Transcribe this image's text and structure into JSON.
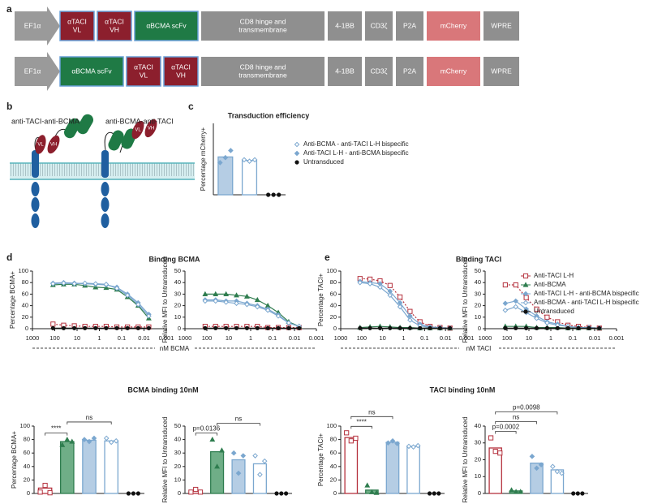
{
  "panel_labels": [
    "a",
    "b",
    "c",
    "d",
    "e"
  ],
  "constructs": [
    {
      "segments": [
        {
          "lines": [
            "EF1α"
          ],
          "kind": "promoter"
        },
        {
          "lines": [
            "αTACI",
            "VL"
          ],
          "kind": "taci"
        },
        {
          "lines": [
            "αTACI",
            "VH"
          ],
          "kind": "taci"
        },
        {
          "lines": [
            "αBCMA scFv"
          ],
          "kind": "bcma"
        },
        {
          "lines": [
            "CD8 hinge and",
            "transmembrane"
          ],
          "kind": "gray"
        },
        {
          "lines": [
            "4-1BB"
          ],
          "kind": "gray"
        },
        {
          "lines": [
            "CD3ζ"
          ],
          "kind": "gray"
        },
        {
          "lines": [
            "P2A"
          ],
          "kind": "gray"
        },
        {
          "lines": [
            "mCherry"
          ],
          "kind": "mcherry"
        },
        {
          "lines": [
            "WPRE"
          ],
          "kind": "gray"
        }
      ]
    },
    {
      "segments": [
        {
          "lines": [
            "EF1α"
          ],
          "kind": "promoter"
        },
        {
          "lines": [
            "αBCMA scFv"
          ],
          "kind": "bcma"
        },
        {
          "lines": [
            "αTACI",
            "VL"
          ],
          "kind": "taci"
        },
        {
          "lines": [
            "αTACI",
            "VH"
          ],
          "kind": "taci"
        },
        {
          "lines": [
            "CD8 hinge and",
            "transmembrane"
          ],
          "kind": "gray"
        },
        {
          "lines": [
            "4-1BB"
          ],
          "kind": "gray"
        },
        {
          "lines": [
            "CD3ζ"
          ],
          "kind": "gray"
        },
        {
          "lines": [
            "P2A"
          ],
          "kind": "gray"
        },
        {
          "lines": [
            "mCherry"
          ],
          "kind": "mcherry"
        },
        {
          "lines": [
            "WPRE"
          ],
          "kind": "gray"
        }
      ]
    }
  ],
  "schematic": {
    "labels": [
      "anti-TACI-anti-BCMA",
      "anti-BCMA-anti-TACI"
    ],
    "domains": [
      "VL",
      "VH"
    ]
  },
  "chart_data": [
    {
      "type": "bar",
      "title": "Transduction efficiency",
      "ylabel": "Percentage mCherry+",
      "ylim": [
        0,
        100
      ],
      "values": [
        53,
        48,
        0
      ],
      "points": [
        [
          45,
          52,
          62
        ],
        [
          49,
          47,
          49
        ],
        [
          0,
          0,
          0
        ]
      ],
      "colors": [
        "#7ba7cf",
        "#7ba7cf",
        "#111111"
      ],
      "fills": [
        "#b5cde4",
        "#ffffff",
        "none"
      ],
      "markers": [
        "diamond",
        "diamond-open",
        "circle"
      ],
      "legend": [
        {
          "name": "Anti-BCMA - anti-TACI L-H bispecific",
          "marker": "diamond-open",
          "color": "#7ba7cf"
        },
        {
          "name": "Anti-TACI L-H - anti-BCMA bispecific",
          "marker": "diamond",
          "color": "#7ba7cf"
        },
        {
          "name": "Untransduced",
          "marker": "circle",
          "color": "#111111"
        }
      ]
    },
    {
      "type": "line",
      "title": "Binding BCMA",
      "ylabel": "Percentage BCMA+",
      "xlabel": "nM BCMA",
      "xscale": "log",
      "xlim": [
        1000,
        0.001
      ],
      "xticks": [
        1000,
        100,
        10,
        1,
        0.1,
        0.01,
        0.001
      ],
      "ylim": [
        0,
        100
      ],
      "yticks": [
        0,
        20,
        40,
        60,
        80,
        100
      ],
      "x": [
        120,
        40,
        13.3,
        4.44,
        1.48,
        0.494,
        0.165,
        0.0549,
        0.0183,
        0.0061
      ],
      "series": [
        {
          "color": "#b5323e",
          "marker": "square-open",
          "line_style": "dotted",
          "values": [
            8,
            6,
            5,
            4,
            4,
            4,
            3,
            3,
            3,
            3
          ]
        },
        {
          "color": "#2f7d4f",
          "marker": "triangle",
          "values": [
            76,
            77,
            77,
            75,
            72,
            71,
            68,
            55,
            40,
            18
          ]
        },
        {
          "color": "#7ba7cf",
          "marker": "diamond",
          "values": [
            79,
            80,
            79,
            78,
            77,
            76,
            72,
            60,
            45,
            25
          ]
        },
        {
          "color": "#7ba7cf",
          "marker": "diamond-open",
          "values": [
            78,
            79,
            78,
            79,
            78,
            77,
            70,
            58,
            42,
            22
          ]
        },
        {
          "color": "#111111",
          "marker": "circle",
          "values": [
            1,
            1,
            1,
            1,
            1,
            1,
            1,
            1,
            1,
            1
          ]
        }
      ]
    },
    {
      "type": "line",
      "ylabel": "Relative MFI to Untransduced",
      "xscale": "log",
      "xlim": [
        1000,
        0.001
      ],
      "xticks": [
        1000,
        100,
        10,
        1,
        0.1,
        0.01,
        0.001
      ],
      "ylim": [
        0,
        50
      ],
      "yticks": [
        0,
        10,
        20,
        30,
        40,
        50
      ],
      "x": [
        120,
        40,
        13.3,
        4.44,
        1.48,
        0.494,
        0.165,
        0.0549,
        0.0183,
        0.0061
      ],
      "series": [
        {
          "color": "#b5323e",
          "marker": "square-open",
          "line_style": "dotted",
          "values": [
            2,
            2,
            2,
            2,
            2,
            2,
            1,
            1,
            1,
            1
          ]
        },
        {
          "color": "#2f7d4f",
          "marker": "triangle",
          "values": [
            30,
            30,
            30,
            29,
            28,
            25,
            20,
            14,
            6,
            2
          ]
        },
        {
          "color": "#7ba7cf",
          "marker": "diamond",
          "values": [
            25,
            25,
            24,
            24,
            22,
            20,
            17,
            12,
            5,
            2
          ]
        },
        {
          "color": "#7ba7cf",
          "marker": "diamond-open",
          "values": [
            24,
            24,
            23,
            22,
            21,
            19,
            16,
            11,
            5,
            2
          ]
        },
        {
          "color": "#111111",
          "marker": "circle",
          "values": [
            0.5,
            0.5,
            0.5,
            0.5,
            0.5,
            0.5,
            0.5,
            0.5,
            0.5,
            0.5
          ]
        }
      ]
    },
    {
      "type": "line",
      "title": "Binding TACI",
      "ylabel": "Percentage TACI+",
      "xlabel": "nM TACI",
      "xscale": "log",
      "xlim": [
        1000,
        0.001
      ],
      "xticks": [
        1000,
        100,
        10,
        1,
        0.1,
        0.01,
        0.001
      ],
      "ylim": [
        0,
        100
      ],
      "yticks": [
        0,
        20,
        40,
        60,
        80,
        100
      ],
      "x": [
        120,
        40,
        13.3,
        4.44,
        1.48,
        0.494,
        0.165,
        0.0549,
        0.0183,
        0.0061
      ],
      "series": [
        {
          "color": "#b5323e",
          "marker": "square-open",
          "line_style": "dotted",
          "values": [
            87,
            86,
            83,
            75,
            55,
            30,
            12,
            4,
            2,
            1
          ]
        },
        {
          "color": "#2f7d4f",
          "marker": "triangle",
          "values": [
            2,
            3,
            4,
            3,
            2,
            2,
            1,
            1,
            1,
            1
          ]
        },
        {
          "color": "#7ba7cf",
          "marker": "diamond",
          "values": [
            82,
            80,
            78,
            65,
            45,
            22,
            8,
            3,
            2,
            1
          ]
        },
        {
          "color": "#7ba7cf",
          "marker": "diamond-open",
          "values": [
            80,
            78,
            72,
            58,
            38,
            15,
            5,
            2,
            1,
            1
          ]
        },
        {
          "color": "#111111",
          "marker": "circle",
          "values": [
            1,
            1,
            1,
            1,
            1,
            1,
            1,
            1,
            1,
            1
          ]
        }
      ]
    },
    {
      "type": "line",
      "ylabel": "Relative MFI to Untransduced",
      "xscale": "log",
      "legend": "top-right",
      "xlim": [
        1000,
        0.001
      ],
      "xticks": [
        1000,
        100,
        10,
        1,
        0.1,
        0.01,
        0.001
      ],
      "ylim": [
        0,
        50
      ],
      "yticks": [
        0,
        10,
        20,
        30,
        40,
        50
      ],
      "x": [
        120,
        40,
        13.3,
        4.44,
        1.48,
        0.494,
        0.165,
        0.0549,
        0.0183,
        0.0061
      ],
      "series": [
        {
          "name": "Anti-TACI L-H",
          "color": "#b5323e",
          "marker": "square-open",
          "line_style": "dotted",
          "values": [
            38,
            38,
            27,
            17,
            10,
            6,
            3,
            2,
            1,
            0.5
          ]
        },
        {
          "name": "Anti-BCMA",
          "color": "#2f7d4f",
          "marker": "triangle",
          "values": [
            2,
            2,
            2,
            1,
            1,
            1,
            0.5,
            0.5,
            0.5,
            0.5
          ]
        },
        {
          "name": "Anti-TACI L-H - anti-BCMA bispecific",
          "color": "#7ba7cf",
          "marker": "diamond",
          "values": [
            22,
            24,
            17,
            11,
            6,
            4,
            2,
            1,
            1,
            0.5
          ]
        },
        {
          "name": "Anti-BCMA - anti-TACI L-H bispecific",
          "color": "#7ba7cf",
          "marker": "diamond-open",
          "values": [
            16,
            19,
            14,
            9,
            5,
            3,
            2,
            1,
            1,
            0.5
          ]
        },
        {
          "name": "Untransduced",
          "color": "#111111",
          "marker": "circle",
          "values": [
            0.5,
            0.5,
            0.5,
            0.5,
            0.5,
            0.5,
            0.5,
            0.5,
            0.5,
            0.5
          ]
        }
      ]
    },
    {
      "type": "bar",
      "title": "BCMA binding 10nM",
      "ylabel": "Percentage BCMA+",
      "ylim": [
        0,
        100
      ],
      "yticks": [
        0,
        20,
        40,
        60,
        80,
        100
      ],
      "values": [
        8,
        77,
        79,
        78,
        0
      ],
      "points": [
        [
          2,
          12,
          1
        ],
        [
          72,
          80,
          77
        ],
        [
          80,
          77,
          82
        ],
        [
          82,
          76,
          78
        ],
        [
          0,
          0,
          0
        ]
      ],
      "colors": [
        "#b5323e",
        "#2f7d4f",
        "#7ba7cf",
        "#7ba7cf",
        "#111111"
      ],
      "fills": [
        "#ffffff",
        "#6fae87",
        "#b5cde4",
        "#ffffff",
        "none"
      ],
      "markers": [
        "square-open",
        "triangle",
        "diamond",
        "diamond-open",
        "circle"
      ],
      "annotations": [
        {
          "text": "****",
          "from": 0,
          "to": 1
        },
        {
          "text": "ns",
          "from": 1,
          "to": 3
        }
      ]
    },
    {
      "type": "bar",
      "ylabel": "Relative MFI to Untransduced",
      "ylim": [
        0,
        50
      ],
      "yticks": [
        0,
        10,
        20,
        30,
        40,
        50
      ],
      "values": [
        2,
        31,
        25,
        22,
        0
      ],
      "points": [
        [
          1,
          3,
          1
        ],
        [
          40,
          20,
          32
        ],
        [
          30,
          15,
          28
        ],
        [
          28,
          14,
          24
        ],
        [
          0,
          0,
          0
        ]
      ],
      "colors": [
        "#b5323e",
        "#2f7d4f",
        "#7ba7cf",
        "#7ba7cf",
        "#111111"
      ],
      "fills": [
        "#ffffff",
        "#6fae87",
        "#b5cde4",
        "#ffffff",
        "none"
      ],
      "markers": [
        "square-open",
        "triangle",
        "diamond",
        "diamond-open",
        "circle"
      ],
      "annotations": [
        {
          "text": "p=0.0136",
          "from": 0,
          "to": 1
        },
        {
          "text": "ns",
          "from": 1,
          "to": 3
        }
      ]
    },
    {
      "type": "bar",
      "title": "TACI binding 10nM",
      "ylabel": "Percentage TACI+",
      "ylim": [
        0,
        100
      ],
      "yticks": [
        0,
        20,
        40,
        60,
        80,
        100
      ],
      "values": [
        83,
        5,
        76,
        70,
        0
      ],
      "points": [
        [
          90,
          78,
          82
        ],
        [
          12,
          2,
          1
        ],
        [
          75,
          78,
          74
        ],
        [
          70,
          69,
          71
        ],
        [
          0,
          0,
          0
        ]
      ],
      "colors": [
        "#b5323e",
        "#2f7d4f",
        "#7ba7cf",
        "#7ba7cf",
        "#111111"
      ],
      "fills": [
        "#ffffff",
        "#6fae87",
        "#b5cde4",
        "#ffffff",
        "none"
      ],
      "markers": [
        "square-open",
        "triangle",
        "diamond",
        "diamond-open",
        "circle"
      ],
      "annotations": [
        {
          "text": "****",
          "from": 0,
          "to": 1
        },
        {
          "text": "ns",
          "from": 0,
          "to": 2
        }
      ]
    },
    {
      "type": "bar",
      "ylabel": "Relative MFI to Untransduced",
      "ylim": [
        0,
        40
      ],
      "yticks": [
        0,
        10,
        20,
        30,
        40
      ],
      "values": [
        27,
        1.5,
        18,
        14,
        0
      ],
      "points": [
        [
          33,
          25,
          24
        ],
        [
          2,
          1,
          1
        ],
        [
          22,
          15,
          17
        ],
        [
          16,
          13,
          12
        ],
        [
          0,
          0,
          0
        ]
      ],
      "colors": [
        "#b5323e",
        "#2f7d4f",
        "#7ba7cf",
        "#7ba7cf",
        "#111111"
      ],
      "fills": [
        "#ffffff",
        "#6fae87",
        "#b5cde4",
        "#ffffff",
        "none"
      ],
      "markers": [
        "square-open",
        "triangle",
        "diamond",
        "diamond-open",
        "circle"
      ],
      "annotations": [
        {
          "text": "p=0.0002",
          "from": 0,
          "to": 1
        },
        {
          "text": "ns",
          "from": 0,
          "to": 2
        },
        {
          "text": "p=0.0098",
          "from": 0,
          "to": 3
        }
      ]
    }
  ]
}
